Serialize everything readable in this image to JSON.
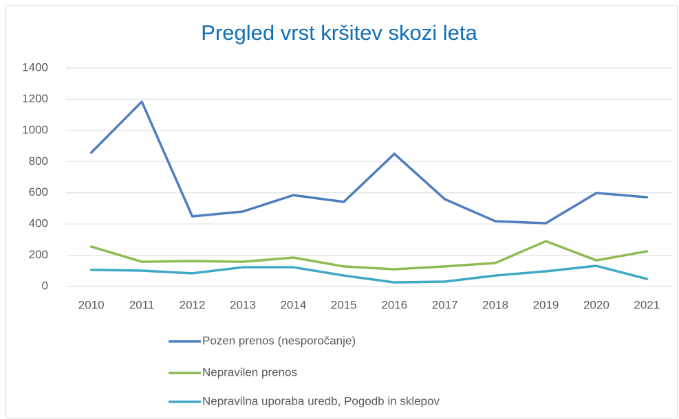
{
  "chart_data": {
    "type": "line",
    "title": "Pregled vrst kršitev skozi leta",
    "categories": [
      "2010",
      "2011",
      "2012",
      "2013",
      "2014",
      "2015",
      "2016",
      "2017",
      "2018",
      "2019",
      "2020",
      "2021"
    ],
    "series": [
      {
        "name": "Pozen prenos (nesporočanje)",
        "color": "#4f7dbd",
        "values": [
          858,
          1184,
          449,
          480,
          585,
          542,
          850,
          559,
          418,
          405,
          599,
          572
        ]
      },
      {
        "name": "Nepravilen prenos",
        "color": "#8fba54",
        "values": [
          255,
          158,
          163,
          158,
          185,
          128,
          110,
          128,
          150,
          290,
          167,
          225
        ]
      },
      {
        "name": "Nepravilna uporaba uredb, Pogodb in sklepov",
        "color": "#3fa8c6",
        "values": [
          106,
          101,
          84,
          123,
          123,
          70,
          26,
          31,
          70,
          97,
          132,
          48
        ]
      }
    ],
    "ylim": [
      0,
      1400
    ],
    "yticks": [
      0,
      200,
      400,
      600,
      800,
      1000,
      1200,
      1400
    ],
    "grid": true,
    "legend": "bottom"
  }
}
